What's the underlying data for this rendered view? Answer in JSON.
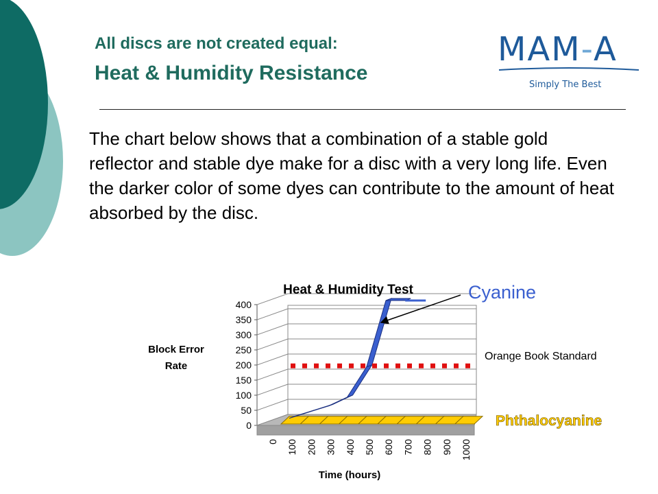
{
  "slide": {
    "title_line1": "All discs are not created equal:",
    "title_line2": "Heat & Humidity Resistance",
    "body": "The chart below shows that a combination of a stable gold reflector and stable dye make for a disc with a very long life.  Even the darker color of some dyes can contribute to the amount of heat absorbed by the disc."
  },
  "logo": {
    "name_main": "MAM",
    "name_dash": "-",
    "name_end": "A",
    "tagline": "Simply The Best"
  },
  "colors": {
    "title": "#1f6b5e",
    "deco_dark": "#0e6b64",
    "deco_light": "#8cc5c1",
    "cyanine": "#3a5fcf",
    "phthalocyanine": "#ffcc00",
    "standard_line": "#e01010",
    "logo": "#1e5a9a"
  },
  "chart_data": {
    "type": "area",
    "title": "Heat & Humidity Test",
    "xlabel": "Time (hours)",
    "ylabel": "Block Error Rate",
    "x": [
      0,
      100,
      200,
      300,
      400,
      500,
      600,
      700,
      800,
      900,
      1000
    ],
    "ylim": [
      0,
      400
    ],
    "yticks": [
      0,
      50,
      100,
      150,
      200,
      250,
      300,
      350,
      400
    ],
    "grid": true,
    "series": [
      {
        "name": "Cyanine",
        "x": [
          0,
          100,
          200,
          300,
          400,
          500,
          600
        ],
        "values": [
          10,
          30,
          50,
          80,
          180,
          400,
          400
        ]
      },
      {
        "name": "Phthalocyanine",
        "x": [
          0,
          100,
          200,
          300,
          400,
          500,
          600,
          700,
          800,
          900,
          1000
        ],
        "values": [
          2,
          2,
          2,
          2,
          2,
          2,
          2,
          2,
          2,
          2,
          2
        ]
      }
    ],
    "reference_line": {
      "label": "Orange Book Standard",
      "value": 220
    },
    "annotations": [
      "Cyanine",
      "Phthalocyanine",
      "Orange Book Standard"
    ]
  }
}
